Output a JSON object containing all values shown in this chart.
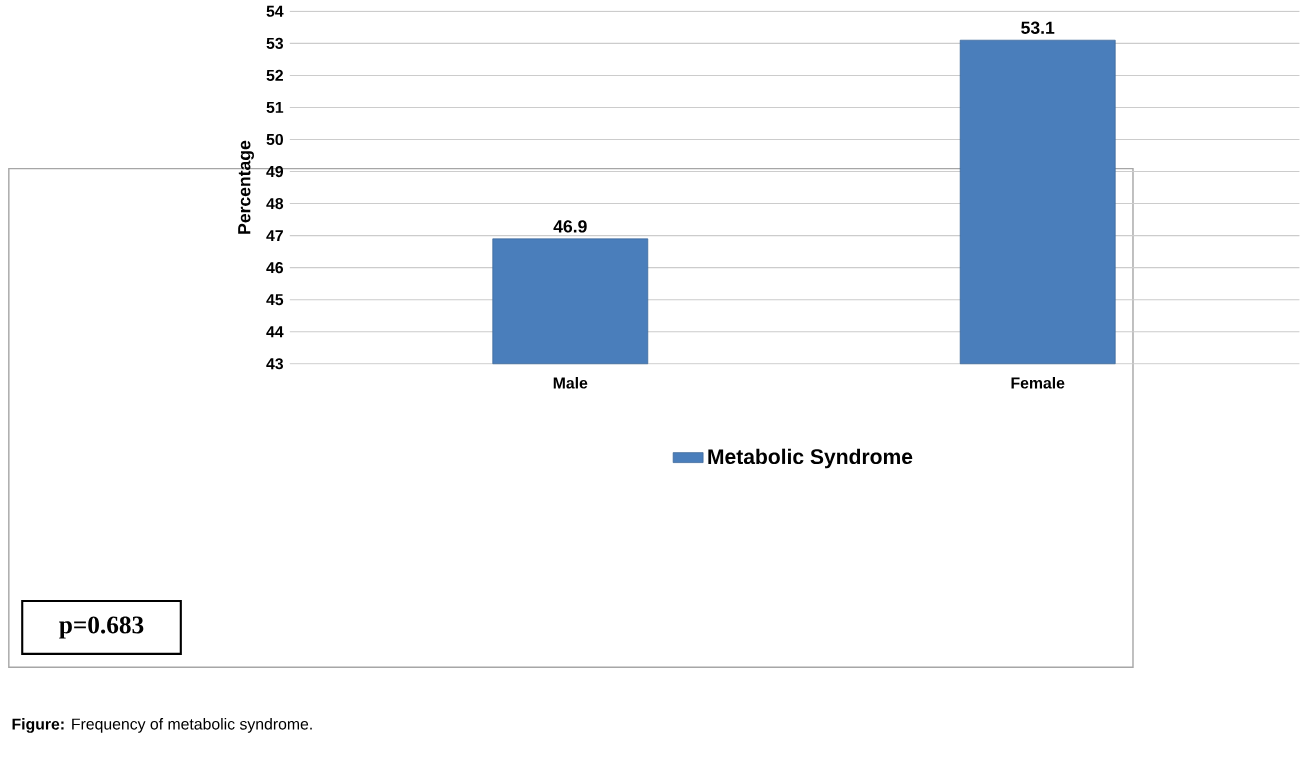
{
  "chart_data": {
    "type": "bar",
    "ylabel": "Percentage",
    "categories": [
      "Male",
      "Female"
    ],
    "series": [
      {
        "name": "Metabolic Syndrome",
        "color": "#4a7ebb",
        "values": [
          46.9,
          53.1
        ]
      }
    ],
    "ylim": [
      43,
      54
    ],
    "yticks": [
      43,
      44,
      45,
      46,
      47,
      48,
      49,
      50,
      51,
      52,
      53,
      54
    ],
    "grid": "y",
    "legend": "bottom",
    "data_labels": true,
    "annotations": [
      "p=0.683",
      "**Figure:** Frequency of metabolic syndrome."
    ]
  }
}
